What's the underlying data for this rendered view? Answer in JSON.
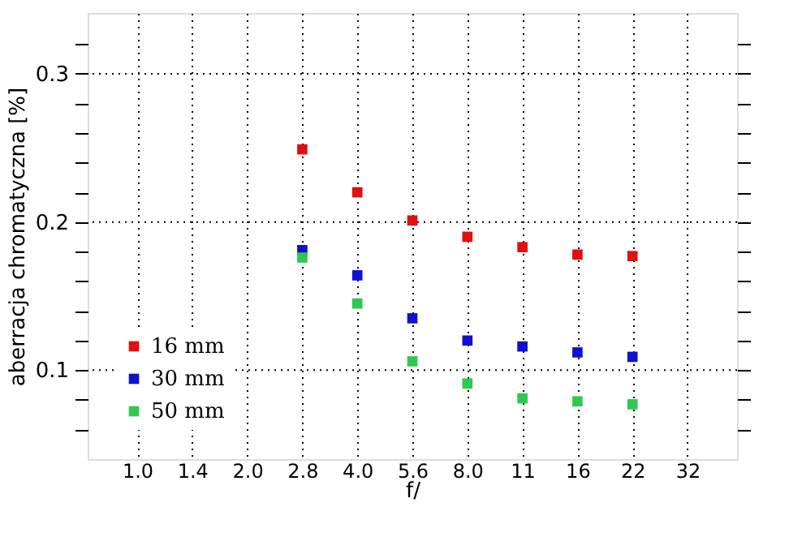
{
  "chart_data": {
    "type": "scatter",
    "xlabel": "f/",
    "ylabel": "aberracja chromatyczna [%]",
    "categories": [
      "1.0",
      "1.4",
      "2.0",
      "2.8",
      "4.0",
      "5.6",
      "8.0",
      "11",
      "16",
      "22",
      "32"
    ],
    "series": [
      {
        "name": "16 mm",
        "color": "#e01010",
        "values": [
          null,
          null,
          null,
          0.249,
          0.22,
          0.201,
          0.19,
          0.183,
          0.178,
          0.177,
          null
        ]
      },
      {
        "name": "30 mm",
        "color": "#1010d0",
        "values": [
          null,
          null,
          null,
          0.181,
          0.164,
          0.135,
          0.12,
          0.116,
          0.112,
          0.109,
          null
        ]
      },
      {
        "name": "50 mm",
        "color": "#30c850",
        "values": [
          null,
          null,
          null,
          0.176,
          0.145,
          0.106,
          0.091,
          0.081,
          0.079,
          0.077,
          null
        ]
      }
    ],
    "ylim": [
      0.04,
      0.341
    ],
    "yticks": [
      {
        "value": 0.06,
        "label": null
      },
      {
        "value": 0.08,
        "label": null
      },
      {
        "value": 0.1,
        "label": "0.1"
      },
      {
        "value": 0.12,
        "label": null
      },
      {
        "value": 0.14,
        "label": null
      },
      {
        "value": 0.16,
        "label": null
      },
      {
        "value": 0.18,
        "label": null
      },
      {
        "value": 0.2,
        "label": "0.2"
      },
      {
        "value": 0.22,
        "label": null
      },
      {
        "value": 0.24,
        "label": null
      },
      {
        "value": 0.26,
        "label": null
      },
      {
        "value": 0.28,
        "label": null
      },
      {
        "value": 0.3,
        "label": "0.3"
      },
      {
        "value": 0.32,
        "label": null
      }
    ],
    "grid": true,
    "legend": "bottom left",
    "marker": "square"
  }
}
